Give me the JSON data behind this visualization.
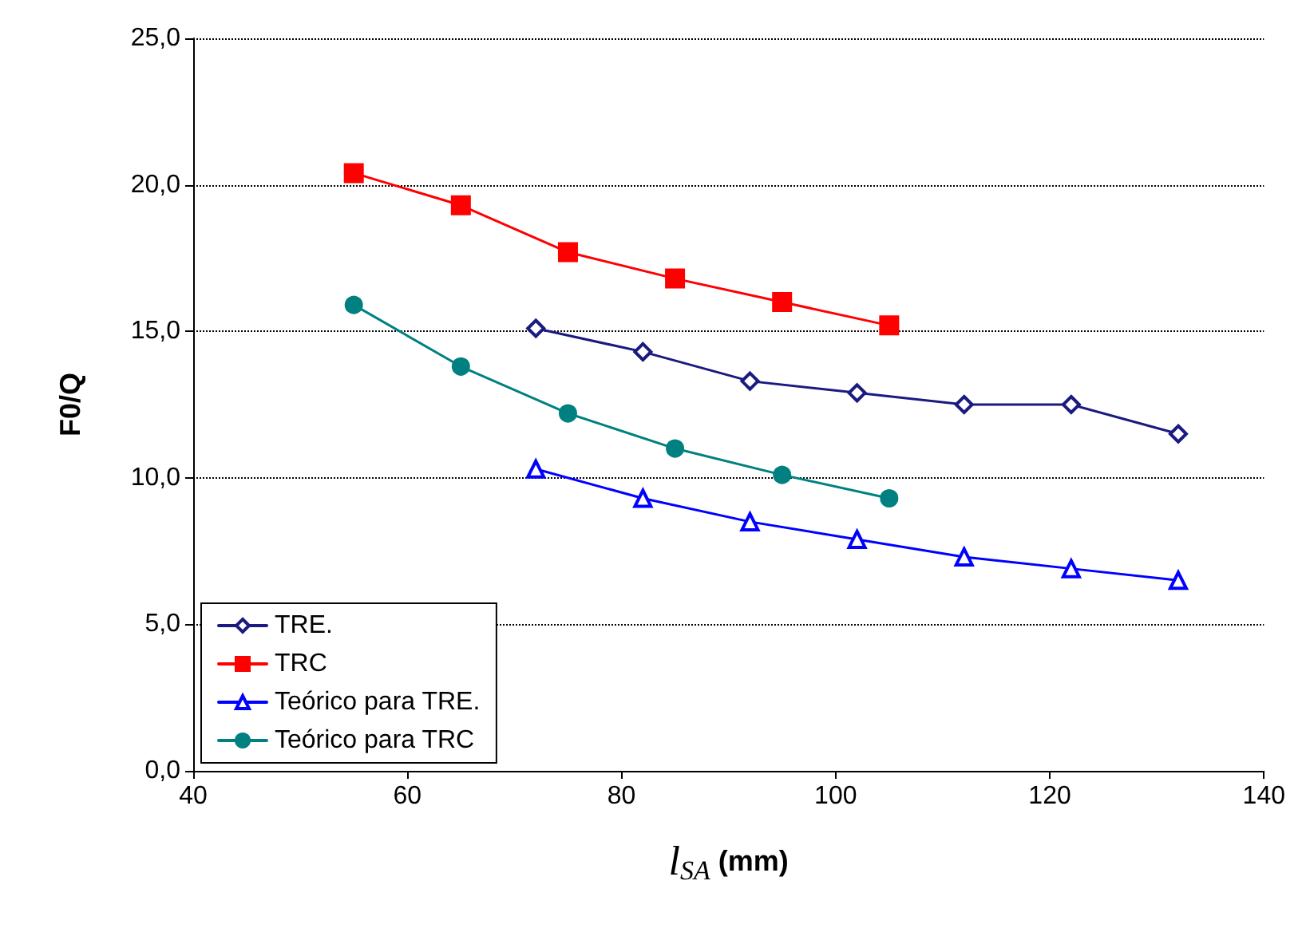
{
  "chart_data": {
    "type": "line",
    "xlabel": "l$_{SA}$ (mm)",
    "ylabel": "F0/Q",
    "xlim": [
      40,
      140
    ],
    "xticks": [
      40,
      60,
      80,
      100,
      120,
      140
    ],
    "ylim": [
      0,
      25
    ],
    "yticks": [
      {
        "value": 0,
        "label": "0,0"
      },
      {
        "value": 5,
        "label": "5,0"
      },
      {
        "value": 10,
        "label": "10,0"
      },
      {
        "value": 15,
        "label": "15,0"
      },
      {
        "value": 20,
        "label": "20,0"
      },
      {
        "value": 25,
        "label": "25,0"
      }
    ],
    "grid": "y",
    "legend": "bottom left",
    "line_style": "solid",
    "series": [
      {
        "name": "TRE.",
        "color": "#1a1a80",
        "marker": "diamond",
        "x": [
          72,
          82,
          92,
          102,
          112,
          122,
          132
        ],
        "values": [
          15.1,
          14.3,
          13.3,
          12.9,
          12.5,
          12.5,
          11.5
        ]
      },
      {
        "name": "TRC",
        "color": "#ff0000",
        "marker": "square",
        "x": [
          55,
          65,
          75,
          85,
          95,
          105
        ],
        "values": [
          20.4,
          19.3,
          17.7,
          16.8,
          16.0,
          15.2
        ]
      },
      {
        "name": "Teórico para TRE.",
        "color": "#0000ff",
        "marker": "triangle",
        "x": [
          72,
          82,
          92,
          102,
          112,
          122,
          132
        ],
        "values": [
          10.3,
          9.3,
          8.5,
          7.9,
          7.3,
          6.9,
          6.5
        ]
      },
      {
        "name": "Teórico para TRC",
        "color": "#008080",
        "marker": "circle",
        "x": [
          55,
          65,
          75,
          85,
          95,
          105
        ],
        "values": [
          15.9,
          13.8,
          12.2,
          11.0,
          10.1,
          9.3
        ]
      }
    ]
  }
}
